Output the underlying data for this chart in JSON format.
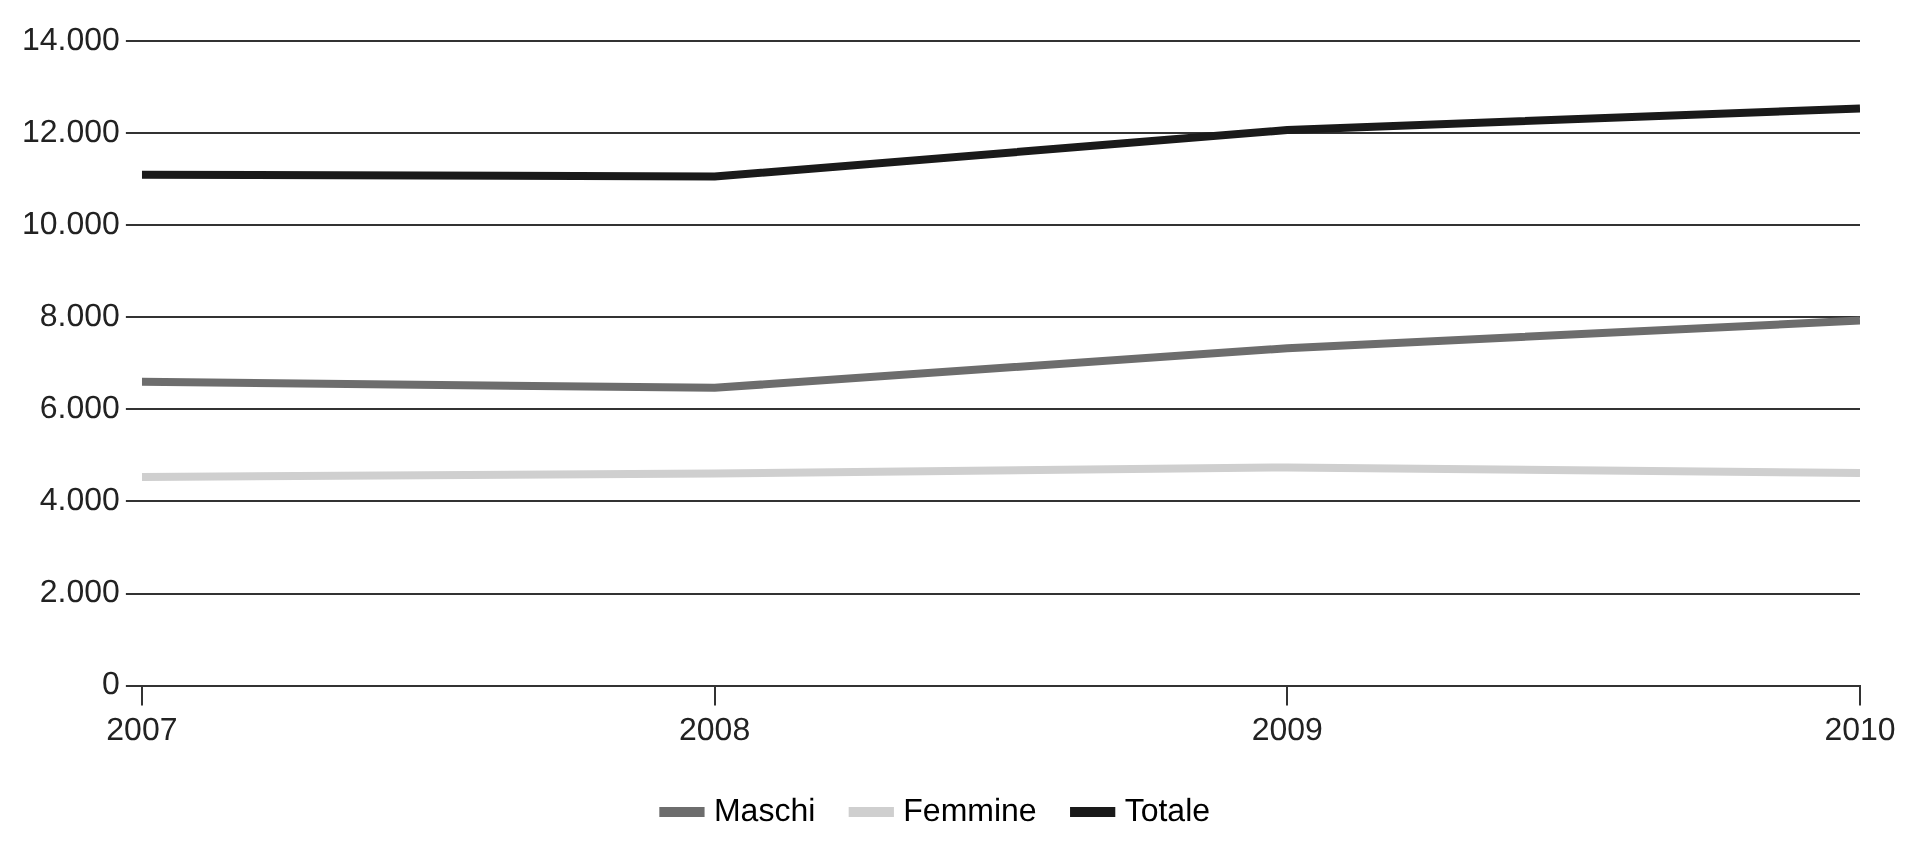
{
  "chart_data": {
    "type": "line",
    "x": [
      2007,
      2008,
      2009,
      2010
    ],
    "xlim": [
      2007,
      2010
    ],
    "xticks": [
      2007,
      2008,
      2009,
      2010
    ],
    "ylim": [
      0,
      14000
    ],
    "yticks": [
      {
        "value": 0,
        "label": "0"
      },
      {
        "value": 2000,
        "label": "2.000"
      },
      {
        "value": 4000,
        "label": "4.000"
      },
      {
        "value": 6000,
        "label": "6.000"
      },
      {
        "value": 8000,
        "label": "8.000"
      },
      {
        "value": 10000,
        "label": "10.000"
      },
      {
        "value": 12000,
        "label": "12.000"
      },
      {
        "value": 14000,
        "label": "14.000"
      }
    ],
    "grid": "y",
    "legend": "bottom",
    "marker": "none",
    "line_style": "solid",
    "series": [
      {
        "name": "Maschi",
        "color": "#6d6d6d",
        "values": [
          6600,
          6470,
          7330,
          7930
        ]
      },
      {
        "name": "Femmine",
        "color": "#cfcfcf",
        "values": [
          4530,
          4610,
          4740,
          4620
        ]
      },
      {
        "name": "Totale",
        "color": "#1a1a1a",
        "values": [
          11100,
          11060,
          12070,
          12540
        ]
      }
    ]
  }
}
